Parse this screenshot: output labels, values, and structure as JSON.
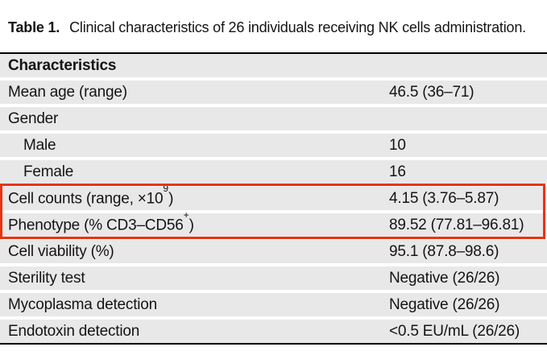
{
  "caption": {
    "label": "Table 1.",
    "text": "Clinical characteristics of 26 individuals receiving NK cells administration."
  },
  "table": {
    "header": "Characteristics",
    "rows": [
      {
        "label": "Mean age (range)",
        "value": "46.5 (36–71)"
      },
      {
        "label": "Gender",
        "value": ""
      },
      {
        "label": "Male",
        "value": "10",
        "indent": true
      },
      {
        "label": "Female",
        "value": "16",
        "indent": true
      },
      {
        "label": "Cell counts (range, ×10",
        "label_sup": "9",
        "label_after": ")",
        "value": "4.15 (3.76–5.87)",
        "highlighted": true
      },
      {
        "label": "Phenotype (% CD3–CD56",
        "label_sup": "+",
        "label_after": ")",
        "value": "89.52 (77.81–96.81)",
        "highlighted": true
      },
      {
        "label": "Cell viability (%)",
        "value": "95.1 (87.8–98.6)"
      },
      {
        "label": "Sterility test",
        "value": "Negative (26/26)"
      },
      {
        "label": "Mycoplasma detection",
        "value": "Negative (26/26)"
      },
      {
        "label": "Endotoxin detection",
        "value": "<0.5 EU/mL (26/26)"
      }
    ]
  },
  "highlight": {
    "color": "#e9330d"
  },
  "colors": {
    "row_background": "#e8e8e8",
    "rule": "#000000",
    "text": "#141414"
  }
}
